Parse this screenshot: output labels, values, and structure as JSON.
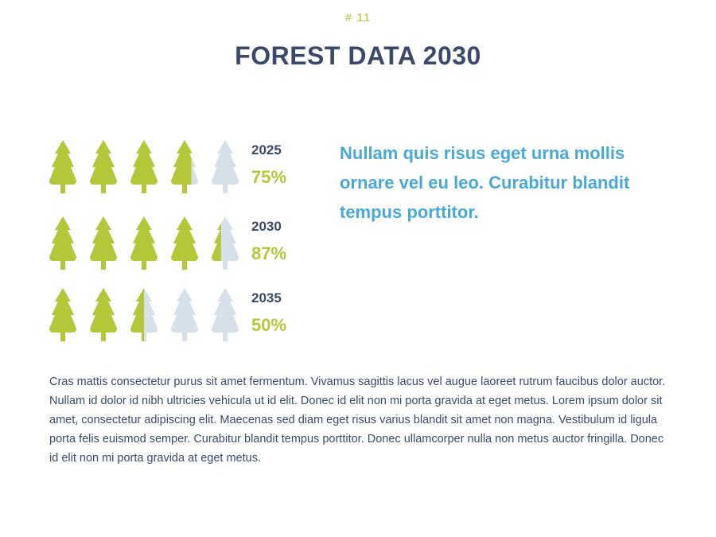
{
  "page_label": "# 11",
  "title": "FOREST DATA 2030",
  "chart_data": {
    "type": "pictogram",
    "categories": [
      "2025",
      "2030",
      "2035"
    ],
    "values": [
      75,
      87,
      50
    ],
    "value_labels": [
      "75%",
      "87%",
      "50%"
    ],
    "xlim": [
      0,
      100
    ],
    "color": "#b3c739",
    "empty_color": "#d5e0e8"
  },
  "quote": "Nullam quis risus eget urna mollis ornare vel eu leo. Curabitur blandit tempus porttitor.",
  "body": "Cras mattis consectetur purus sit amet fermentum. Vivamus sagittis lacus vel augue laoreet rutrum faucibus dolor auctor. Nullam id dolor id nibh ultricies vehicula ut id elit. Donec id elit non mi porta gravida at eget metus. Lorem ipsum dolor sit amet, consectetur adipiscing elit. Maecenas sed diam eget risus varius blandit sit amet non magna. Vestibulum id ligula porta felis euismod semper. Curabitur blandit tempus porttitor. Donec ullamcorper nulla non metus auctor fringilla. Donec id elit non mi porta gravida at eget metus."
}
